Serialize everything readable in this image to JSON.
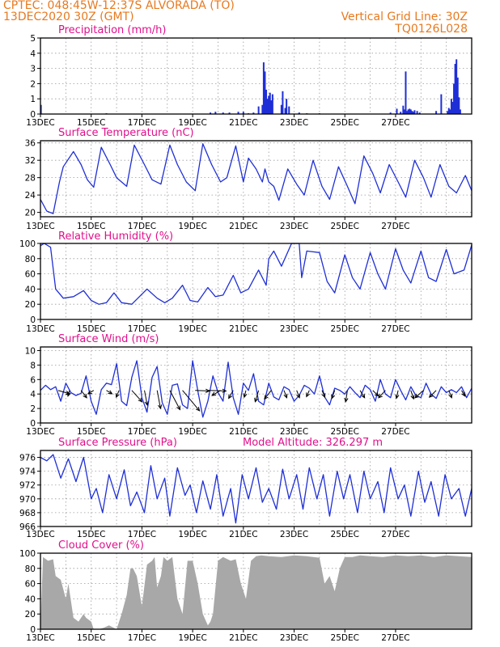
{
  "header": {
    "station": "CPTEC:   048:45W-12:37S   ALVORADA (TO)",
    "run": "13DEC2020 30Z (GMT)",
    "grid_note": "Vertical Grid Line: 30Z",
    "code": "TQ0126L028"
  },
  "colors": {
    "header": "#e8791e",
    "title": "#e0108c",
    "series": "#1f2fd6",
    "cloud": "#a8a8a8",
    "arrow": "#000000"
  },
  "x_labels": [
    "13DEC",
    "15DEC",
    "17DEC",
    "19DEC",
    "21DEC",
    "23DEC",
    "25DEC",
    "27DEC"
  ],
  "chart_data": [
    {
      "id": "precip",
      "type": "bar",
      "title": "Precipitation (mm/h)",
      "ylim": [
        0,
        5
      ],
      "yticks": [
        0,
        1,
        2,
        3,
        4,
        5
      ],
      "x_labels": [
        "13DEC",
        "15DEC",
        "17DEC",
        "19DEC",
        "21DEC",
        "23DEC",
        "25DEC",
        "27DEC"
      ],
      "x": [
        0.02,
        2.6,
        6.7,
        6.9,
        7.2,
        7.45,
        7.8,
        8.0,
        8.2,
        8.4,
        8.6,
        8.75,
        8.8,
        8.85,
        8.9,
        8.95,
        9.0,
        9.05,
        9.1,
        9.15,
        9.5,
        9.55,
        9.65,
        9.7,
        9.8,
        10.2,
        10.5,
        11.0,
        13.8,
        14.05,
        14.2,
        14.3,
        14.35,
        14.4,
        14.45,
        14.5,
        14.55,
        14.6,
        14.65,
        14.7,
        14.75,
        14.85,
        14.95,
        15.6,
        15.8,
        16.05,
        16.1,
        16.15,
        16.2,
        16.25,
        16.3,
        16.35,
        16.4,
        16.45,
        16.5,
        16.55
      ],
      "values": [
        0.6,
        0.05,
        0.1,
        0.15,
        0.1,
        0.1,
        0.15,
        0.15,
        0.05,
        0.1,
        0.5,
        0.6,
        3.4,
        2.8,
        1.6,
        1.0,
        1.2,
        1.4,
        0.9,
        1.3,
        0.6,
        1.5,
        0.4,
        1.0,
        0.5,
        0.1,
        0.05,
        0.05,
        0.1,
        0.35,
        0.15,
        0.55,
        0.3,
        2.8,
        0.2,
        0.3,
        0.35,
        0.3,
        0.2,
        0.15,
        0.25,
        0.2,
        0.1,
        0.2,
        1.3,
        0.2,
        0.4,
        0.3,
        1.0,
        0.8,
        2.0,
        3.3,
        3.6,
        2.4,
        1.1,
        0.3
      ]
    },
    {
      "id": "temp",
      "type": "line",
      "title": "Surface Temperature (nC)",
      "ylim": [
        19,
        36.5
      ],
      "yticks": [
        20,
        24,
        28,
        32,
        36
      ],
      "x_labels": [
        "13DEC",
        "15DEC",
        "17DEC",
        "19DEC",
        "21DEC",
        "23DEC",
        "25DEC",
        "27DEC"
      ],
      "x": [
        0,
        0.25,
        0.5,
        0.75,
        0.9,
        1.3,
        1.6,
        1.85,
        2.1,
        2.4,
        2.75,
        3.0,
        3.4,
        3.7,
        4.1,
        4.4,
        4.75,
        5.1,
        5.4,
        5.75,
        6.1,
        6.4,
        6.75,
        7.1,
        7.35,
        7.7,
        8.0,
        8.2,
        8.5,
        8.75,
        8.85,
        9.0,
        9.2,
        9.4,
        9.75,
        10.1,
        10.4,
        10.75,
        11.1,
        11.4,
        11.75,
        12.1,
        12.4,
        12.75,
        13.1,
        13.4,
        13.75,
        14.1,
        14.4,
        14.75,
        15.1,
        15.4,
        15.75,
        16.1,
        16.4,
        16.75,
        17.0
      ],
      "values": [
        23,
        20.3,
        19.7,
        27,
        30.5,
        34,
        31,
        27.5,
        25.8,
        35,
        31,
        28,
        26,
        35.5,
        31,
        27.5,
        26.5,
        35.5,
        31,
        27,
        25,
        35.8,
        31,
        27,
        28,
        35.3,
        27,
        32.5,
        30,
        27,
        30,
        27,
        26,
        22.8,
        30,
        26.5,
        24,
        32,
        26,
        23,
        30.5,
        26,
        22,
        33,
        29,
        24.5,
        31,
        27,
        23.5,
        32,
        28,
        23.5,
        31,
        26,
        24.5,
        28.5,
        25
      ]
    },
    {
      "id": "rh",
      "type": "line",
      "title": "Relative Humidity (%)",
      "ylim": [
        0,
        100
      ],
      "yticks": [
        0,
        20,
        40,
        60,
        80,
        100
      ],
      "x_labels": [
        "13DEC",
        "15DEC",
        "17DEC",
        "19DEC",
        "21DEC",
        "23DEC",
        "25DEC",
        "27DEC"
      ],
      "x": [
        0,
        0.15,
        0.4,
        0.6,
        0.9,
        1.3,
        1.7,
        2.0,
        2.3,
        2.6,
        2.9,
        3.2,
        3.6,
        3.9,
        4.2,
        4.6,
        4.9,
        5.2,
        5.6,
        5.9,
        6.2,
        6.6,
        6.9,
        7.2,
        7.6,
        7.9,
        8.2,
        8.6,
        8.9,
        9.0,
        9.2,
        9.5,
        9.9,
        10.2,
        10.3,
        10.5,
        11.0,
        11.3,
        11.6,
        12.0,
        12.3,
        12.6,
        13.0,
        13.3,
        13.6,
        14.0,
        14.3,
        14.6,
        15.0,
        15.3,
        15.6,
        16.0,
        16.3,
        16.7,
        17.0
      ],
      "values": [
        97,
        100,
        95,
        40,
        28,
        30,
        38,
        25,
        20,
        22,
        35,
        22,
        20,
        30,
        40,
        28,
        22,
        28,
        45,
        25,
        23,
        42,
        30,
        32,
        58,
        35,
        40,
        65,
        45,
        80,
        90,
        70,
        100,
        100,
        55,
        90,
        88,
        50,
        35,
        85,
        55,
        40,
        88,
        60,
        40,
        93,
        65,
        48,
        90,
        55,
        50,
        92,
        60,
        65,
        98
      ]
    },
    {
      "id": "wind",
      "type": "line",
      "title": "Surface Wind (m/s)",
      "ylim": [
        0,
        10.5
      ],
      "yticks": [
        0,
        2,
        4,
        6,
        8,
        10
      ],
      "x_labels": [
        "13DEC",
        "15DEC",
        "17DEC",
        "19DEC",
        "21DEC",
        "23DEC",
        "25DEC",
        "27DEC"
      ],
      "x": [
        0,
        0.2,
        0.4,
        0.6,
        0.8,
        1.0,
        1.2,
        1.4,
        1.6,
        1.8,
        2.0,
        2.2,
        2.4,
        2.6,
        2.8,
        3.0,
        3.2,
        3.4,
        3.6,
        3.8,
        4.0,
        4.2,
        4.4,
        4.6,
        4.8,
        5.0,
        5.2,
        5.4,
        5.6,
        5.8,
        6.0,
        6.2,
        6.4,
        6.6,
        6.8,
        7.0,
        7.2,
        7.4,
        7.6,
        7.8,
        8.0,
        8.2,
        8.4,
        8.6,
        8.8,
        9.0,
        9.2,
        9.4,
        9.6,
        9.8,
        10.0,
        10.2,
        10.4,
        10.6,
        10.8,
        11.0,
        11.2,
        11.4,
        11.6,
        11.8,
        12.0,
        12.2,
        12.4,
        12.6,
        12.8,
        13.0,
        13.2,
        13.4,
        13.6,
        13.8,
        14.0,
        14.2,
        14.4,
        14.6,
        14.8,
        15.0,
        15.2,
        15.4,
        15.6,
        15.8,
        16.0,
        16.2,
        16.4,
        16.6,
        16.8,
        17.0
      ],
      "values": [
        4.5,
        5.2,
        4.6,
        5.0,
        3.0,
        5.5,
        4.2,
        3.8,
        4.1,
        6.5,
        3.0,
        1.2,
        4.6,
        5.5,
        5.3,
        8.2,
        3.0,
        2.4,
        6.3,
        8.6,
        3.5,
        1.5,
        6.3,
        7.8,
        2.8,
        1.2,
        5.2,
        5.4,
        2.5,
        2.0,
        8.6,
        4.5,
        0.8,
        3.0,
        6.5,
        4.2,
        3.0,
        8.4,
        3.5,
        1.2,
        5.5,
        4.5,
        6.8,
        3.0,
        2.5,
        5.5,
        3.6,
        3.2,
        5.0,
        4.6,
        3.0,
        3.8,
        5.2,
        4.8,
        4.0,
        6.5,
        3.6,
        2.5,
        4.8,
        4.5,
        4.0,
        5.0,
        4.2,
        3.5,
        5.2,
        4.6,
        3.0,
        6.0,
        4.0,
        3.5,
        6.0,
        4.5,
        3.2,
        5.0,
        3.8,
        3.5,
        5.5,
        4.0,
        3.4,
        5.0,
        4.2,
        4.6,
        4.2,
        5.0,
        3.5,
        4.8
      ],
      "arrows": {
        "x": [
          0.7,
          1.15,
          1.6,
          2.1,
          2.6,
          3.1,
          3.6,
          4.1,
          4.6,
          5.1,
          5.6,
          6.1,
          6.6,
          7.1,
          7.6,
          8.1,
          8.6,
          9.1,
          9.6,
          10.1,
          10.6,
          11.1,
          11.6,
          12.1,
          12.6,
          13.1,
          13.6,
          14.1,
          14.6,
          15.1,
          15.6,
          16.1,
          16.6
        ],
        "u": [
          2,
          -0.3,
          1.0,
          -1.0,
          1.0,
          -0.5,
          1.8,
          0.5,
          0.6,
          1.8,
          3.0,
          2.5,
          3.2,
          -1.5,
          -0.8,
          -0.3,
          -0.6,
          -1.2,
          0.5,
          0.5,
          -0.5,
          0.5,
          -0.5,
          -0.3,
          0.8,
          1.0,
          -1.2,
          -0.3,
          0.5,
          -1.5,
          -1.2,
          0.5,
          0.6
        ],
        "v": [
          0.6,
          1.0,
          1.3,
          0.6,
          0.6,
          1.2,
          2.0,
          2.6,
          3.2,
          3.4,
          3.6,
          0.1,
          0.1,
          0.9,
          1.4,
          1.2,
          2.0,
          1.5,
          1.3,
          1.3,
          1.1,
          1.2,
          1.4,
          2.0,
          1.3,
          1.0,
          1.3,
          1.4,
          1.5,
          1.3,
          1.2,
          1.3,
          1.0
        ]
      }
    },
    {
      "id": "pressure",
      "type": "line",
      "title": "Surface Pressure (hPa)",
      "note": "Model Altitude: 326.297  m",
      "ylim": [
        966,
        977
      ],
      "yticks": [
        966,
        968,
        970,
        972,
        974,
        976
      ],
      "x_labels": [
        "13DEC",
        "15DEC",
        "17DEC",
        "19DEC",
        "21DEC",
        "23DEC",
        "25DEC",
        "27DEC"
      ],
      "x": [
        0,
        0.25,
        0.5,
        0.8,
        1.1,
        1.4,
        1.7,
        2.0,
        2.2,
        2.45,
        2.7,
        3.0,
        3.3,
        3.55,
        3.8,
        4.1,
        4.35,
        4.6,
        4.9,
        5.1,
        5.4,
        5.7,
        5.9,
        6.15,
        6.4,
        6.7,
        6.95,
        7.2,
        7.5,
        7.7,
        7.95,
        8.2,
        8.5,
        8.75,
        9.0,
        9.3,
        9.55,
        9.8,
        10.1,
        10.35,
        10.6,
        10.9,
        11.15,
        11.4,
        11.7,
        11.95,
        12.2,
        12.5,
        12.75,
        13.0,
        13.3,
        13.55,
        13.8,
        14.1,
        14.35,
        14.6,
        14.9,
        15.15,
        15.4,
        15.7,
        15.95,
        16.2,
        16.5,
        16.75,
        17.0
      ],
      "values": [
        976,
        975.5,
        976.4,
        973,
        975.8,
        972.5,
        976,
        970,
        971.5,
        968,
        973.5,
        970,
        974.2,
        969,
        971,
        968,
        974.8,
        970,
        973,
        967.5,
        974.5,
        970.5,
        972,
        968,
        972.6,
        968.5,
        973.5,
        967.5,
        971.5,
        966.5,
        973.5,
        970,
        974.5,
        969.5,
        971.5,
        968.5,
        974.3,
        970,
        973.5,
        968.5,
        974.5,
        970,
        973.5,
        967.5,
        974,
        970,
        973.5,
        968,
        974,
        970,
        972.5,
        968,
        974.5,
        970,
        972,
        967.5,
        974,
        969.5,
        972.5,
        967.5,
        973.5,
        970,
        971.5,
        967.5,
        971.5
      ]
    },
    {
      "id": "cloud",
      "type": "area",
      "title": "Cloud Cover (%)",
      "ylim": [
        0,
        100
      ],
      "yticks": [
        0,
        20,
        40,
        60,
        80,
        100
      ],
      "x_labels": [
        "13DEC",
        "15DEC",
        "17DEC",
        "19DEC",
        "21DEC",
        "23DEC",
        "25DEC",
        "27DEC"
      ],
      "x": [
        0,
        0.1,
        0.3,
        0.5,
        0.6,
        0.8,
        1.0,
        1.1,
        1.3,
        1.5,
        1.7,
        1.8,
        2.0,
        2.1,
        2.3,
        2.5,
        2.7,
        3.0,
        3.1,
        3.2,
        3.4,
        3.55,
        3.65,
        3.8,
        4.0,
        4.2,
        4.4,
        4.5,
        4.6,
        4.75,
        4.85,
        5.0,
        5.2,
        5.4,
        5.6,
        5.8,
        6.0,
        6.2,
        6.4,
        6.6,
        6.7,
        6.8,
        7.0,
        7.2,
        7.5,
        7.7,
        7.9,
        8.1,
        8.3,
        8.5,
        8.7,
        9.0,
        9.5,
        10.0,
        10.5,
        11.0,
        11.2,
        11.4,
        11.6,
        11.8,
        12.0,
        12.3,
        12.6,
        13.0,
        13.5,
        14.0,
        14.5,
        15.0,
        15.5,
        16.0,
        16.5,
        17.0
      ],
      "values": [
        0,
        95,
        90,
        92,
        70,
        65,
        40,
        60,
        15,
        10,
        20,
        15,
        10,
        0,
        0,
        2,
        5,
        0,
        10,
        20,
        45,
        80,
        80,
        70,
        30,
        85,
        90,
        95,
        55,
        70,
        95,
        90,
        95,
        40,
        20,
        90,
        90,
        60,
        20,
        5,
        10,
        20,
        90,
        95,
        90,
        92,
        60,
        40,
        90,
        96,
        97,
        96,
        95,
        97,
        96,
        94,
        60,
        70,
        50,
        80,
        95,
        95,
        97,
        96,
        95,
        97,
        96,
        97,
        95,
        97,
        96,
        95
      ]
    }
  ]
}
